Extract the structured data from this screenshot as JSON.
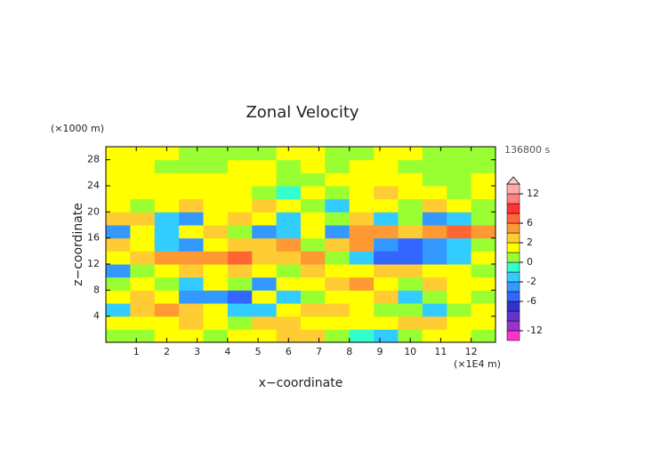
{
  "chart_data": {
    "type": "contour",
    "title": "Zonal Velocity",
    "xlabel": "x−coordinate",
    "ylabel": "z−coordinate",
    "x_unit_label": "(×1E4 m)",
    "y_unit_label": "(×1000 m)",
    "time_label": "136800 s",
    "xlim": [
      0,
      12.8
    ],
    "ylim": [
      0,
      30
    ],
    "xticks": [
      1,
      2,
      3,
      4,
      5,
      6,
      7,
      8,
      9,
      10,
      11,
      12
    ],
    "yticks": [
      4,
      8,
      12,
      16,
      20,
      24,
      28
    ],
    "levels": [
      -14,
      -12,
      -10,
      -8,
      -6,
      -4,
      -2,
      -1,
      0,
      1,
      2,
      4,
      6,
      8,
      10,
      12,
      14
    ],
    "colors": [
      "#ff33cc",
      "#9933cc",
      "#6633cc",
      "#3333cc",
      "#3366ff",
      "#3399ff",
      "#33ccff",
      "#33ffcc",
      "#99ff33",
      "#ffff00",
      "#ffcc33",
      "#ff9933",
      "#ff6633",
      "#ff3333",
      "#ff8080",
      "#ffaaaa"
    ],
    "over_color": "#ffcccc",
    "colorbar_ticks": [
      -12,
      -6,
      -2,
      0,
      2,
      6,
      12
    ],
    "x": [
      0.4,
      1.2,
      2.0,
      2.8,
      3.6,
      4.4,
      5.2,
      6.0,
      6.8,
      7.6,
      8.4,
      9.2,
      10.0,
      10.8,
      11.6,
      12.4
    ],
    "z": [
      1,
      3,
      5,
      7,
      9,
      11,
      13,
      15,
      17,
      19,
      21,
      23,
      25,
      27,
      29
    ],
    "values": [
      [
        0.5,
        0.5,
        1.5,
        1.5,
        0.5,
        1.5,
        1.5,
        3,
        3,
        0.5,
        -0.5,
        -1.5,
        0.5,
        1.5,
        1.5,
        0.5
      ],
      [
        1.5,
        1.5,
        1.5,
        3,
        1.5,
        0.5,
        3,
        3,
        1.5,
        1.5,
        1.5,
        1.5,
        3,
        3,
        1.5,
        1.5
      ],
      [
        -1.5,
        3,
        5,
        3,
        1.5,
        -1.5,
        -1.5,
        1.5,
        3,
        3,
        1.5,
        0.5,
        0.5,
        -1.5,
        0.5,
        1.5
      ],
      [
        1.5,
        3,
        1.5,
        -3,
        -3,
        -5,
        1.5,
        -1.5,
        0.5,
        1.5,
        1.5,
        3,
        -1.5,
        0.5,
        1.5,
        0.5
      ],
      [
        0.5,
        1.5,
        0.5,
        -1.5,
        1.5,
        0.5,
        -3,
        1.5,
        1.5,
        3,
        5,
        1.5,
        0.5,
        3,
        1.5,
        1.5
      ],
      [
        -3,
        0.5,
        1.5,
        3,
        1.5,
        3,
        1.5,
        0.5,
        3,
        1.5,
        1.5,
        3,
        3,
        1.5,
        1.5,
        0.5
      ],
      [
        1.5,
        3,
        5,
        5,
        5,
        7,
        3,
        3,
        5,
        0.5,
        -1.5,
        -5,
        -5,
        -3,
        -1.5,
        1.5
      ],
      [
        3,
        1.5,
        -1.5,
        -3,
        1.5,
        3,
        3,
        5,
        0.5,
        3,
        5,
        -3,
        -5,
        -3,
        -1.5,
        0.5
      ],
      [
        -3,
        1.5,
        -1.5,
        1.5,
        3,
        0.5,
        -3,
        -1.5,
        1.5,
        -3,
        5,
        5,
        3,
        5,
        7,
        5
      ],
      [
        3,
        3,
        -1.5,
        -3,
        1.5,
        3,
        1.5,
        -1.5,
        1.5,
        0.5,
        3,
        -1.5,
        0.5,
        -3,
        -1.5,
        0.5
      ],
      [
        1.5,
        0.5,
        1.5,
        3,
        1.5,
        1.5,
        3,
        1.5,
        0.5,
        -1.5,
        1.5,
        1.5,
        0.5,
        3,
        1.5,
        0.5
      ],
      [
        1.5,
        1.5,
        1.5,
        1.5,
        1.5,
        1.5,
        0.5,
        -0.5,
        1.5,
        0.5,
        1.5,
        3,
        1.5,
        1.5,
        0.5,
        1.5
      ],
      [
        1.5,
        1.5,
        1.5,
        1.5,
        1.5,
        1.5,
        1.5,
        0.5,
        0.5,
        1.5,
        1.5,
        1.5,
        1.5,
        0.5,
        0.5,
        1.5
      ],
      [
        1.5,
        1.5,
        0.5,
        0.5,
        0.5,
        1.5,
        1.5,
        0.5,
        1.5,
        0.5,
        1.5,
        1.5,
        0.5,
        0.5,
        0.5,
        0.5
      ],
      [
        1.5,
        1.5,
        1.5,
        0.5,
        0.5,
        0.5,
        0.5,
        1.5,
        1.5,
        0.5,
        0.5,
        1.5,
        1.5,
        0.5,
        0.5,
        0.5
      ]
    ]
  }
}
